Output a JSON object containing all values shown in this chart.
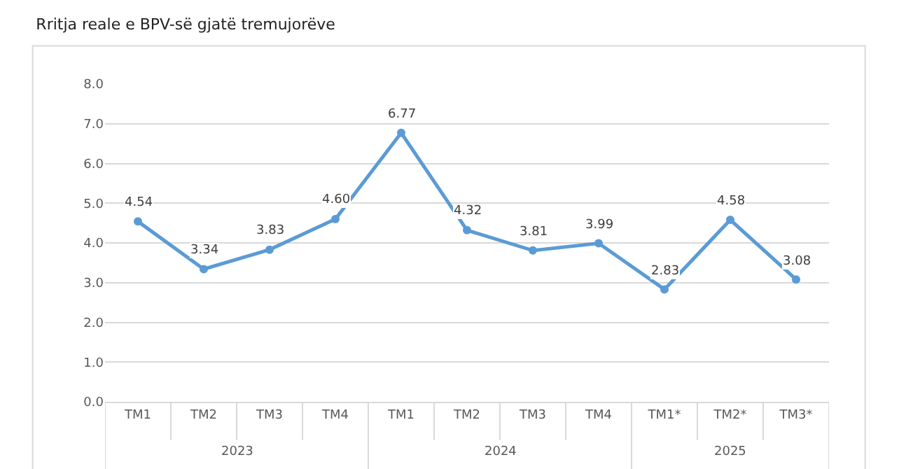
{
  "chart_data": {
    "type": "line",
    "title": "Rritja reale e BPV-së gjatë tremujorëve",
    "categories": [
      "TM1",
      "TM2",
      "TM3",
      "TM4",
      "TM1",
      "TM2",
      "TM3",
      "TM4",
      "TM1*",
      "TM2*",
      "TM3*"
    ],
    "series": [
      {
        "color": "#5b9bd5",
        "values": [
          4.54,
          3.34,
          3.83,
          4.6,
          6.77,
          4.32,
          3.81,
          3.99,
          2.83,
          4.58,
          3.08
        ],
        "value_labels": [
          "4.54",
          "3.34",
          "3.83",
          "4.60",
          "6.77",
          "4.32",
          "3.81",
          "3.99",
          "2.83",
          "4.58",
          "3.08"
        ]
      }
    ],
    "annotations": [
      "2023",
      "2024",
      "2025"
    ],
    "ylim": [
      0,
      8
    ],
    "yticks": [
      {
        "value": 0,
        "label": "0.0"
      },
      {
        "value": 1,
        "label": "1.0"
      },
      {
        "value": 2,
        "label": "2.0"
      },
      {
        "value": 3,
        "label": "3.0"
      },
      {
        "value": 4,
        "label": "4.0"
      },
      {
        "value": 5,
        "label": "5.0"
      },
      {
        "value": 6,
        "label": "6.0"
      },
      {
        "value": 7,
        "label": "7.0"
      },
      {
        "value": 8,
        "label": "8.0"
      }
    ],
    "grid": "y",
    "marker": "circle",
    "line_style": "solid"
  }
}
